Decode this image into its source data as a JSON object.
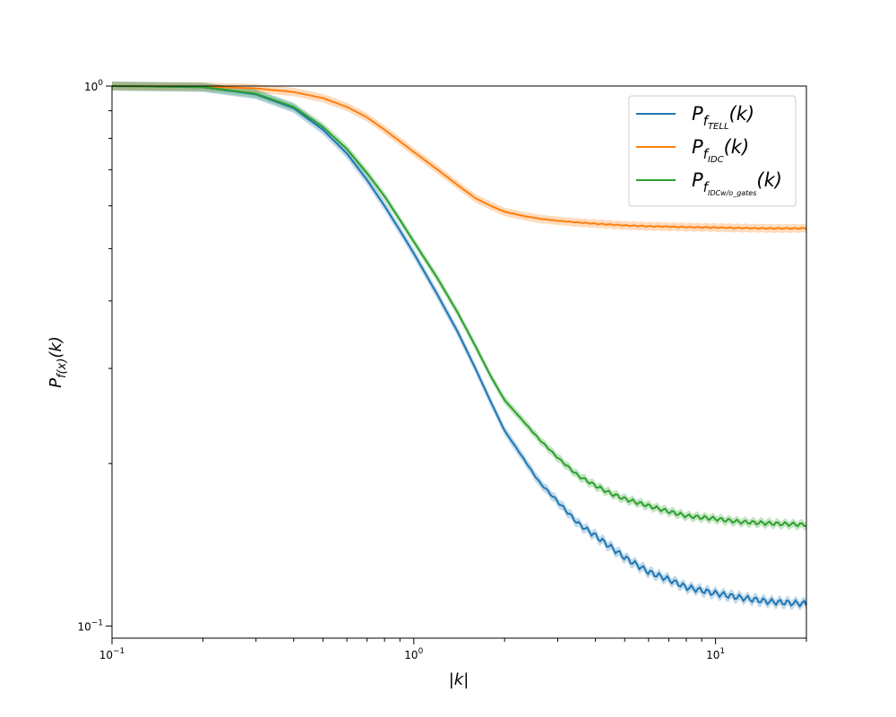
{
  "chart_data": {
    "type": "line",
    "xscale": "log",
    "yscale": "log",
    "xlim": [
      0.1,
      20
    ],
    "ylim": [
      0.095,
      1.0
    ],
    "xlabel": "|k|",
    "ylabel": "P_f(x)(k)",
    "x_ticks": [
      {
        "value": 0.1,
        "base": "10",
        "exp": "−1"
      },
      {
        "value": 1,
        "base": "10",
        "exp": "0"
      },
      {
        "value": 10,
        "base": "10",
        "exp": "1"
      }
    ],
    "y_ticks": [
      {
        "value": 0.1,
        "base": "10",
        "exp": "−1"
      },
      {
        "value": 1,
        "base": "10",
        "exp": "0"
      }
    ],
    "legend_position": "top-right",
    "grid": false,
    "x": [
      0.1,
      0.2,
      0.3,
      0.4,
      0.5,
      0.6,
      0.7,
      0.8,
      0.9,
      1.0,
      1.2,
      1.4,
      1.6,
      1.8,
      2.0,
      2.3,
      2.6,
      3.0,
      3.5,
      4.0,
      4.5,
      5.0,
      6.0,
      7.0,
      8.0,
      10.0,
      12.0,
      15.0,
      20.0
    ],
    "series": [
      {
        "name_parts": {
          "main": "P",
          "sub": "f",
          "subsub": "TELL",
          "tail": "(k)"
        },
        "color": "#1f77b4",
        "values": [
          1.0,
          0.995,
          0.965,
          0.91,
          0.83,
          0.75,
          0.67,
          0.6,
          0.54,
          0.49,
          0.41,
          0.35,
          0.3,
          0.26,
          0.23,
          0.205,
          0.185,
          0.17,
          0.155,
          0.147,
          0.14,
          0.134,
          0.126,
          0.122,
          0.118,
          0.115,
          0.113,
          0.111,
          0.11
        ],
        "band": 0.02,
        "ripple": 0.012
      },
      {
        "name_parts": {
          "main": "P",
          "sub": "f",
          "subsub": "IDC",
          "tail": "(k)"
        },
        "color": "#ff7f0e",
        "values": [
          1.0,
          0.998,
          0.99,
          0.975,
          0.95,
          0.915,
          0.875,
          0.83,
          0.79,
          0.755,
          0.7,
          0.655,
          0.62,
          0.6,
          0.585,
          0.575,
          0.568,
          0.563,
          0.559,
          0.556,
          0.554,
          0.552,
          0.55,
          0.549,
          0.548,
          0.547,
          0.546,
          0.545,
          0.545
        ],
        "band": 0.018,
        "ripple": 0.002
      },
      {
        "name_parts": {
          "main": "P",
          "sub": "f",
          "subsub": "IDCw/o_gates",
          "tail": "(k)"
        },
        "color": "#2ca02c",
        "values": [
          1.0,
          0.996,
          0.968,
          0.915,
          0.84,
          0.765,
          0.69,
          0.625,
          0.565,
          0.515,
          0.44,
          0.38,
          0.33,
          0.29,
          0.262,
          0.24,
          0.222,
          0.205,
          0.19,
          0.182,
          0.176,
          0.172,
          0.167,
          0.163,
          0.16,
          0.158,
          0.156,
          0.155,
          0.154
        ],
        "band": 0.018,
        "ripple": 0.008
      }
    ]
  }
}
